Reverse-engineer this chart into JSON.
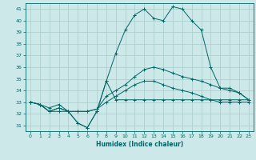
{
  "xlabel": "Humidex (Indice chaleur)",
  "ylabel": "",
  "xlim": [
    -0.5,
    23.5
  ],
  "ylim": [
    30.5,
    41.5
  ],
  "xticks": [
    0,
    1,
    2,
    3,
    4,
    5,
    6,
    7,
    8,
    9,
    10,
    11,
    12,
    13,
    14,
    15,
    16,
    17,
    18,
    19,
    20,
    21,
    22,
    23
  ],
  "yticks": [
    31,
    32,
    33,
    34,
    35,
    36,
    37,
    38,
    39,
    40,
    41
  ],
  "bg_color": "#cce8e8",
  "grid_color": "#aacccc",
  "line_color": "#006666",
  "series": [
    [
      33,
      32.8,
      32.2,
      32.2,
      32.2,
      31.2,
      30.8,
      32.2,
      34.8,
      33.2,
      33.2,
      33.2,
      33.2,
      33.2,
      33.2,
      33.2,
      33.2,
      33.2,
      33.2,
      33.2,
      33.2,
      33.2,
      33.2,
      33.2
    ],
    [
      33,
      32.8,
      32.2,
      32.5,
      32.2,
      32.2,
      32.2,
      32.4,
      33.0,
      33.5,
      34.0,
      34.5,
      34.8,
      34.8,
      34.5,
      34.2,
      34.0,
      33.8,
      33.5,
      33.2,
      33.0,
      33.0,
      33.0,
      33.0
    ],
    [
      33,
      32.8,
      32.2,
      32.5,
      32.2,
      32.2,
      32.2,
      32.4,
      33.5,
      34.0,
      34.5,
      35.2,
      35.8,
      36.0,
      35.8,
      35.5,
      35.2,
      35.0,
      34.8,
      34.5,
      34.2,
      34.0,
      33.8,
      33.2
    ],
    [
      33,
      32.8,
      32.5,
      32.8,
      32.2,
      31.2,
      30.8,
      32.2,
      34.8,
      37.2,
      39.2,
      40.5,
      41.0,
      40.2,
      40.0,
      41.2,
      41.0,
      40.0,
      39.2,
      36.0,
      34.2,
      34.2,
      33.8,
      33.2
    ]
  ]
}
